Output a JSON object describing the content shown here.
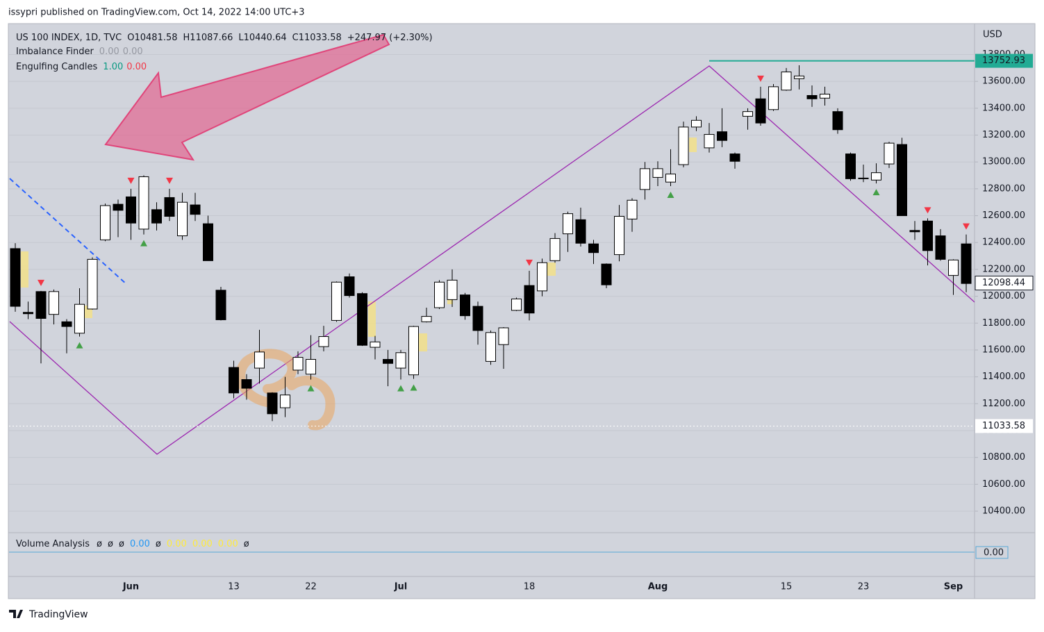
{
  "header": {
    "text": "issypri published on TradingView.com, Oct 14, 2022 14:00 UTC+3"
  },
  "chart_data": {
    "type": "candlestick",
    "legend": {
      "symbol": "US 100 INDEX, 1D, TVC",
      "open": "O10481.58",
      "high": "H11087.66",
      "low": "L10440.64",
      "close": "C11033.58",
      "change": "+247.97 (+2.30%)"
    },
    "indicators": [
      {
        "name": "Imbalance Finder",
        "values": [
          "0.00",
          "0.00"
        ],
        "colors": [
          "#9598a1",
          "#9598a1"
        ]
      },
      {
        "name": "Engulfing Candles",
        "values": [
          "1.00",
          "0.00"
        ],
        "colors": [
          "#089981",
          "#f23645"
        ]
      }
    ],
    "currency": "USD",
    "categories": [
      null,
      null,
      null,
      null,
      null,
      null,
      null,
      null,
      null,
      "Jun",
      null,
      null,
      null,
      null,
      null,
      null,
      null,
      "13",
      null,
      null,
      null,
      null,
      null,
      "22",
      null,
      null,
      null,
      null,
      null,
      null,
      "Jul",
      null,
      null,
      null,
      null,
      null,
      null,
      null,
      null,
      null,
      "18",
      null,
      null,
      null,
      null,
      null,
      null,
      null,
      null,
      null,
      "Aug",
      null,
      null,
      null,
      null,
      null,
      null,
      null,
      null,
      null,
      "15",
      null,
      null,
      null,
      null,
      null,
      "23",
      null,
      null,
      null,
      null,
      null,
      null,
      "Sep",
      null
    ],
    "open": [
      12355,
      11880,
      12035,
      11865,
      11810,
      11725,
      11905,
      12420,
      12685,
      12740,
      12500,
      12645,
      12735,
      12450,
      12680,
      12540,
      12045,
      11470,
      11380,
      11465,
      11280,
      11170,
      11450,
      11420,
      11625,
      11820,
      12145,
      12020,
      11620,
      11530,
      11465,
      11415,
      11810,
      11915,
      11975,
      12010,
      11925,
      11515,
      11640,
      11895,
      12080,
      12040,
      12265,
      12465,
      12570,
      12390,
      12240,
      12310,
      12575,
      12795,
      12885,
      12850,
      12980,
      13260,
      13105,
      13225,
      13060,
      13340,
      13470,
      13390,
      13535,
      13620,
      13495,
      13475,
      13375,
      13060,
      12880,
      12865,
      12985,
      13130,
      12490,
      12560,
      12450,
      12155,
      12390
    ],
    "high": [
      12395,
      11960,
      12040,
      12050,
      11830,
      12060,
      12290,
      12690,
      12720,
      12800,
      12900,
      12700,
      12800,
      12770,
      12770,
      12600,
      12070,
      11520,
      11420,
      11750,
      11285,
      11400,
      11590,
      11710,
      11780,
      12110,
      12170,
      12030,
      11705,
      11600,
      11600,
      11780,
      11915,
      12120,
      12200,
      12025,
      11960,
      11745,
      11770,
      11990,
      12190,
      12280,
      12470,
      12630,
      12660,
      12420,
      12245,
      12680,
      12730,
      13000,
      13005,
      13095,
      13300,
      13340,
      13290,
      13400,
      13070,
      13400,
      13560,
      13580,
      13700,
      13720,
      13570,
      13560,
      13400,
      13070,
      12980,
      12990,
      13150,
      13180,
      12560,
      12580,
      12500,
      12275,
      12460
    ],
    "low": [
      11885,
      11830,
      11500,
      11790,
      11575,
      11700,
      11900,
      12410,
      12440,
      12420,
      12460,
      12490,
      12560,
      12420,
      12560,
      12265,
      11820,
      11240,
      11230,
      11350,
      11070,
      11100,
      11420,
      11380,
      11590,
      11810,
      11990,
      11630,
      11530,
      11330,
      11380,
      11385,
      11805,
      11905,
      11920,
      11825,
      11640,
      11490,
      11460,
      11890,
      11820,
      12000,
      12250,
      12330,
      12370,
      12240,
      12060,
      12260,
      12480,
      12720,
      12820,
      12820,
      12960,
      13230,
      13070,
      13110,
      12950,
      13240,
      13270,
      13380,
      13530,
      13540,
      13410,
      13420,
      13210,
      12860,
      12850,
      12840,
      12955,
      12600,
      12420,
      12230,
      12265,
      12010,
      12030
    ],
    "close": [
      11925,
      11870,
      11835,
      12035,
      11775,
      11940,
      12275,
      12675,
      12640,
      12545,
      12890,
      12545,
      12595,
      12700,
      12610,
      12265,
      11825,
      11280,
      11315,
      11585,
      11125,
      11265,
      11545,
      11530,
      11700,
      12105,
      12005,
      11635,
      11660,
      11500,
      11580,
      11775,
      11850,
      12105,
      12120,
      11855,
      11745,
      11730,
      11765,
      11980,
      11875,
      12250,
      12430,
      12615,
      12395,
      12325,
      12085,
      12595,
      12715,
      12950,
      12950,
      12910,
      13260,
      13310,
      13205,
      13160,
      13005,
      13375,
      13290,
      13560,
      13670,
      13640,
      13470,
      13505,
      13240,
      12875,
      12875,
      12920,
      13140,
      12600,
      12480,
      12340,
      12275,
      12270,
      12095
    ],
    "up_color": "#ffffff",
    "down_color": "#000000",
    "wick_color": "#000000",
    "down_markers": [
      2,
      9,
      12,
      40,
      58,
      71,
      74
    ],
    "down_marker_color": "#f23645",
    "up_markers": [
      5,
      10,
      23,
      30,
      31,
      51,
      67
    ],
    "up_marker_color": "#43a047",
    "ylim": [
      10250,
      14030
    ],
    "yticks": [
      {
        "value": 10400,
        "label": "10400.00"
      },
      {
        "value": 10600,
        "label": "10600.00"
      },
      {
        "value": 10800,
        "label": "10800.00"
      },
      {
        "value": 11000,
        "label": "11000.00"
      },
      {
        "value": 11200,
        "label": "11200.00"
      },
      {
        "value": 11400,
        "label": "11400.00"
      },
      {
        "value": 11600,
        "label": "11600.00"
      },
      {
        "value": 11800,
        "label": "11800.00"
      },
      {
        "value": 12000,
        "label": "12000.00"
      },
      {
        "value": 12200,
        "label": "12200.00"
      },
      {
        "value": 12400,
        "label": "12400.00"
      },
      {
        "value": 12600,
        "label": "12600.00"
      },
      {
        "value": 12800,
        "label": "12800.00"
      },
      {
        "value": 13000,
        "label": "13000.00"
      },
      {
        "value": 13200,
        "label": "13200.00"
      },
      {
        "value": 13400,
        "label": "13400.00"
      },
      {
        "value": 13600,
        "label": "13600.00"
      },
      {
        "value": 13800,
        "label": "13800.00"
      }
    ],
    "grid": true,
    "price_labels": [
      {
        "price": 13752.93,
        "color": "#22ab94",
        "text_color": "#ffffff",
        "line": true
      },
      {
        "price": 12098.44,
        "color": "#ffffff",
        "text_color": "#131722",
        "line": false
      },
      {
        "price": 11033.58,
        "color": "#ffffff",
        "text_color": "#131722",
        "line": true
      }
    ],
    "volume_analysis": {
      "name": "Volume Analysis",
      "values": [
        "ø",
        "ø",
        "ø",
        "0.00",
        "ø",
        "0.00",
        "0.00",
        "0.00",
        "ø"
      ],
      "colors": [
        "#131722",
        "#131722",
        "#131722",
        "#2196f3",
        "#131722",
        "#ffeb3b",
        "#ffeb3b",
        "#ffeb3b",
        "#131722"
      ],
      "axis_label": "0.00"
    }
  },
  "footer": {
    "brand": "TradingView"
  }
}
